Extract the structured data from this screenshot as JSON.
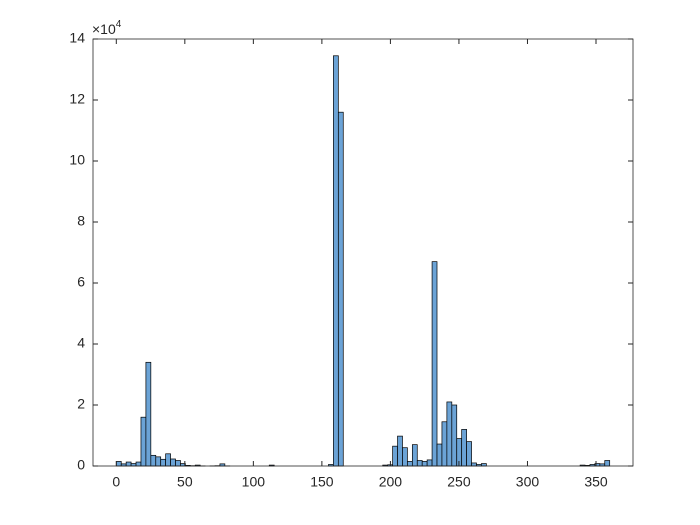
{
  "chart_data": {
    "type": "histogram",
    "bins": [
      0,
      3.6,
      7.2,
      10.8,
      14.4,
      18,
      21.6,
      25.2,
      28.8,
      32.4,
      36,
      39.6,
      43.2,
      46.8,
      50.4,
      54,
      57.6,
      61.2,
      64.8,
      68.4,
      72,
      75.6,
      79.2,
      82.8,
      86.4,
      90,
      93.6,
      97.2,
      100.8,
      104.4,
      108,
      111.6,
      115.2,
      118.8,
      122.4,
      126,
      129.6,
      133.2,
      136.8,
      140.4,
      144,
      147.6,
      151.2,
      154.8,
      158.4,
      162,
      165.6,
      169.2,
      172.8,
      176.4,
      180,
      183.6,
      187.2,
      190.8,
      194.4,
      198,
      201.6,
      205.2,
      208.8,
      212.4,
      216,
      219.6,
      223.2,
      226.8,
      230.4,
      234,
      237.6,
      241.2,
      244.8,
      248.4,
      252,
      255.6,
      259.2,
      262.8,
      266.4,
      270,
      273.6,
      277.2,
      280.8,
      284.4,
      288,
      291.6,
      295.2,
      298.8,
      302.4,
      306,
      309.6,
      313.2,
      316.8,
      320.4,
      324,
      327.6,
      331.2,
      334.8,
      338.4,
      342,
      345.6,
      349.2,
      352.8,
      356.4,
      360
    ],
    "values": [
      1500,
      700,
      1300,
      800,
      1300,
      16000,
      34000,
      3500,
      3000,
      2200,
      4000,
      2300,
      1800,
      800,
      200,
      100,
      300,
      50,
      0,
      50,
      100,
      700,
      50,
      0,
      0,
      0,
      0,
      0,
      0,
      0,
      0,
      300,
      0,
      0,
      0,
      0,
      0,
      0,
      0,
      0,
      0,
      0,
      0,
      500,
      134500,
      116000,
      0,
      0,
      0,
      0,
      0,
      0,
      0,
      0,
      300,
      400,
      6500,
      9800,
      6000,
      1500,
      7000,
      1800,
      1500,
      2000,
      67000,
      7200,
      14500,
      21000,
      20000,
      9000,
      12000,
      8000,
      1000,
      500,
      800,
      0,
      0,
      0,
      0,
      0,
      0,
      0,
      0,
      0,
      0,
      0,
      0,
      0,
      0,
      0,
      0,
      0,
      0,
      0,
      300,
      200,
      500,
      800,
      700,
      1800
    ],
    "color": "#6ba3d6",
    "xlim": [
      -17,
      377
    ],
    "xticks": [
      0,
      50,
      100,
      150,
      200,
      250,
      300,
      350
    ],
    "ylim": [
      0,
      140000
    ],
    "yticks": [
      0,
      {
        "value": 20000,
        "label": "2"
      },
      {
        "value": 40000,
        "label": "4"
      },
      {
        "value": 60000,
        "label": "6"
      },
      {
        "value": 80000,
        "label": "8"
      },
      {
        "value": 100000,
        "label": "10"
      },
      {
        "value": 120000,
        "label": "12"
      },
      {
        "value": 140000,
        "label": "14"
      }
    ],
    "y_multiplier": {
      "base": "×10",
      "exponent": "4"
    }
  }
}
